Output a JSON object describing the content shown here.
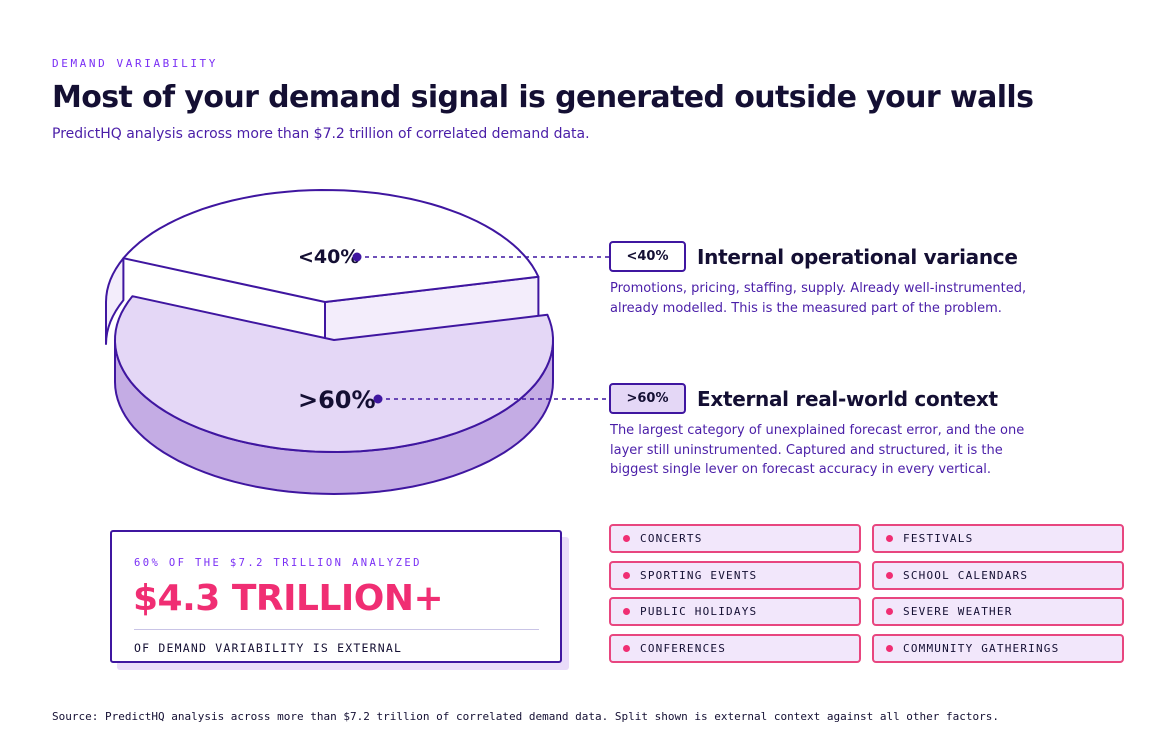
{
  "header": {
    "eyebrow": "DEMAND VARIABILITY",
    "title": "Most of your demand signal is generated outside your walls",
    "subtitle": "PredictHQ analysis across more than $7.2 trillion of correlated demand data."
  },
  "chart_data": {
    "type": "pie",
    "title": "",
    "slices": [
      {
        "label": "<40%",
        "value": 40,
        "name": "Internal operational variance"
      },
      {
        "label": ">60%",
        "value": 60,
        "name": "External real-world context"
      }
    ]
  },
  "categories": [
    {
      "pill": "<40%",
      "title": "Internal operational variance",
      "desc": "Promotions, pricing, staffing, supply. Already well-instrumented, already modelled. This is the measured part of the problem."
    },
    {
      "pill": ">60%",
      "title": "External real-world context",
      "desc": "The largest category of unexplained forecast error, and the one layer still uninstrumented. Captured and structured, it is the biggest single lever on forecast accuracy in every vertical."
    }
  ],
  "stat": {
    "kicker": "60% OF THE $7.2 TRILLION ANALYZED",
    "value": "$4.3 TRILLION+",
    "foot": "OF DEMAND VARIABILITY IS EXTERNAL"
  },
  "chips": [
    "CONCERTS",
    "FESTIVALS",
    "SPORTING EVENTS",
    "SCHOOL CALENDARS",
    "PUBLIC HOLIDAYS",
    "SEVERE WEATHER",
    "CONFERENCES",
    "COMMUNITY GATHERINGS"
  ],
  "source": "Source: PredictHQ analysis across more than $7.2 trillion of correlated demand data. Split shown is external context against all other factors.",
  "colors": {
    "ink": "#140f33",
    "purple": "#3f16a0",
    "violet": "#7a2ff5",
    "external_top": "#e4d7f6",
    "external_side": "#c4ace4",
    "internal_top": "#ffffff",
    "internal_side": "#f3edfb",
    "accent": "#f02e73"
  }
}
